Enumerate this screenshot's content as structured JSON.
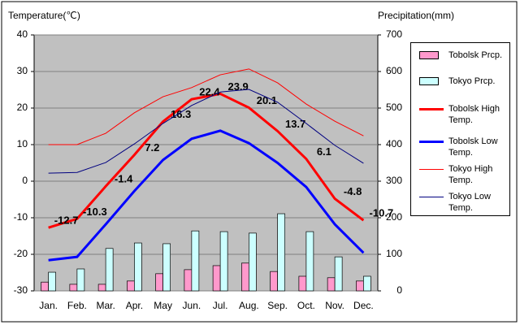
{
  "chart_data": {
    "type": "combo",
    "y_label": "Temperature(℃)",
    "y2_label": "Precipitation(mm)",
    "categories": [
      "Jan.",
      "Feb.",
      "Mar.",
      "Apr.",
      "May",
      "Jun.",
      "Jul.",
      "Aug.",
      "Sep.",
      "Oct.",
      "Nov.",
      "Dec."
    ],
    "ylim": [
      -30,
      40
    ],
    "yticks": [
      -30,
      -20,
      -10,
      0,
      10,
      20,
      30,
      40
    ],
    "y2lim": [
      0,
      700
    ],
    "y2ticks": [
      0,
      100,
      200,
      300,
      400,
      500,
      600,
      700
    ],
    "grid": true,
    "series": [
      {
        "name": "Tobolsk Prcp.",
        "type": "bar",
        "axis": "y2",
        "color": "#ff99cc",
        "values": [
          24,
          18,
          18,
          27,
          47,
          58,
          69,
          76,
          53,
          40,
          36,
          27
        ]
      },
      {
        "name": "Tokyo Prcp.",
        "type": "bar",
        "axis": "y2",
        "color": "#ccffff",
        "values": [
          51,
          60,
          116,
          131,
          129,
          164,
          162,
          158,
          211,
          162,
          93,
          40
        ]
      },
      {
        "name": "Tobolsk High Temp.",
        "type": "line",
        "color": "#ff0000",
        "width": 3,
        "labels": true,
        "values": [
          -12.7,
          -10.3,
          -1.4,
          7.2,
          16.3,
          22.4,
          23.9,
          20.1,
          13.7,
          6.1,
          -4.8,
          -10.7
        ]
      },
      {
        "name": "Tobolsk Low Temp.",
        "type": "line",
        "color": "#0000ff",
        "width": 3,
        "values": [
          -21.6,
          -20.7,
          -11.8,
          -2.7,
          5.8,
          11.6,
          13.8,
          10.4,
          5.0,
          -1.6,
          -11.8,
          -19.6
        ]
      },
      {
        "name": "Tokyo High Temp.",
        "type": "line",
        "color": "#ff0000",
        "width": 1,
        "values": [
          10.0,
          10.0,
          13.1,
          18.7,
          23.1,
          25.6,
          29.1,
          30.7,
          26.9,
          21.1,
          16.4,
          12.4
        ]
      },
      {
        "name": "Tokyo Low Temp.",
        "type": "line",
        "color": "#000080",
        "width": 1,
        "values": [
          2.2,
          2.4,
          5.1,
          10.2,
          15.8,
          20.7,
          24.4,
          25.1,
          21.6,
          15.8,
          9.8,
          4.9
        ]
      }
    ]
  }
}
